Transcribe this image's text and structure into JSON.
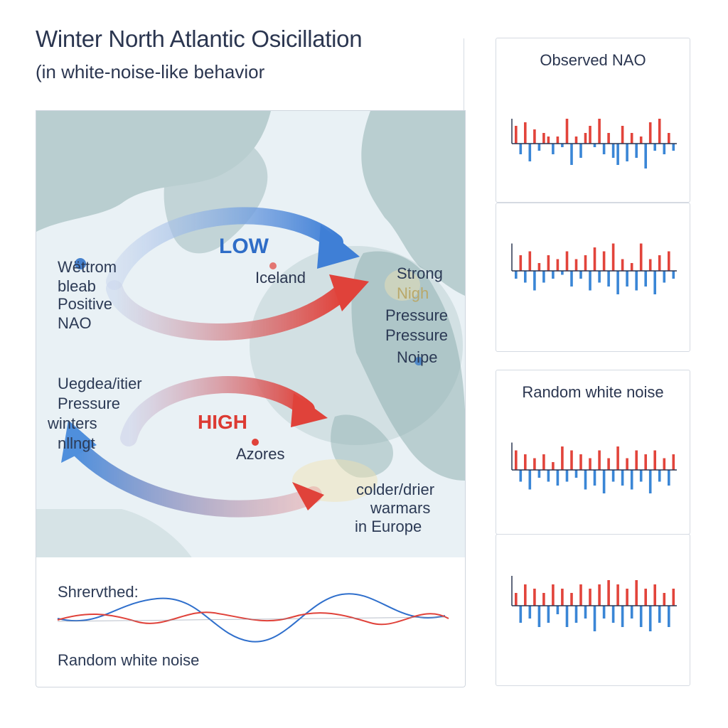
{
  "title": "Winter North Atlantic Osicillation",
  "subtitle": "(in white-noise-like behavior",
  "map": {
    "low_label": "LOW",
    "iceland": "Iceland",
    "high_label": "HIGH",
    "azores": "Azores",
    "left_top": [
      "Wëttrom",
      "bleab",
      "Positive",
      "NAO"
    ],
    "left_bottom": [
      "Uegdea/itier",
      "Pressure",
      "winters",
      "nllngt"
    ],
    "right_top": [
      "Strong",
      "Nigh",
      "Pressure",
      "Pressure",
      "Noipe"
    ],
    "right_bottom": [
      "colder/drier",
      "warmars",
      "in Europe"
    ],
    "colors": {
      "low_arrow": "#3f7fd6",
      "high_arrow": "#e0423a",
      "land": "#9fb9bb",
      "sea": "#e7f0f4"
    }
  },
  "wave_panel": {
    "top_label": "Shrervthed:",
    "bottom_label": "Random white noise"
  },
  "panels": [
    {
      "title": "Observed NAO",
      "values": [
        0.5,
        -0.3,
        0.6,
        -0.5,
        0.4,
        -0.2,
        0.3,
        0.2,
        -0.3,
        0.2,
        -0.1,
        0.7,
        -0.6,
        0.2,
        -0.4,
        0.3,
        0.5,
        -0.1,
        0.7,
        -0.3,
        0.3,
        -0.4,
        -0.6,
        0.5,
        -0.5,
        0.3,
        -0.4,
        0.2,
        -0.7,
        0.6,
        -0.2,
        0.7,
        -0.3,
        0.3,
        -0.2
      ]
    },
    {
      "title": "",
      "values": [
        -0.2,
        0.4,
        -0.3,
        0.5,
        -0.5,
        0.2,
        -0.3,
        0.4,
        -0.2,
        0.3,
        -0.1,
        0.5,
        -0.4,
        0.3,
        -0.2,
        0.4,
        -0.5,
        0.6,
        -0.3,
        0.5,
        -0.4,
        0.7,
        -0.6,
        0.3,
        -0.4,
        0.2,
        -0.5,
        0.7,
        -0.4,
        0.3,
        -0.6,
        0.4,
        -0.3,
        0.5,
        -0.2
      ]
    },
    {
      "title": "Random white noise",
      "values": [
        0.5,
        -0.3,
        0.4,
        -0.5,
        0.3,
        -0.2,
        0.4,
        -0.3,
        0.2,
        -0.4,
        0.6,
        -0.3,
        0.5,
        -0.2,
        0.4,
        -0.5,
        0.3,
        -0.4,
        0.5,
        -0.6,
        0.3,
        -0.3,
        0.6,
        -0.4,
        0.3,
        -0.5,
        0.5,
        -0.3,
        0.4,
        -0.6,
        0.5,
        -0.3,
        0.3,
        -0.4,
        0.4
      ]
    },
    {
      "title": "",
      "values": [
        0.3,
        -0.4,
        0.5,
        -0.3,
        0.4,
        -0.5,
        0.3,
        -0.4,
        0.5,
        -0.2,
        0.4,
        -0.5,
        0.3,
        -0.4,
        0.5,
        -0.3,
        0.4,
        -0.6,
        0.5,
        -0.3,
        0.6,
        -0.4,
        0.5,
        -0.5,
        0.4,
        -0.3,
        0.6,
        -0.5,
        0.4,
        -0.6,
        0.5,
        -0.4,
        0.3,
        -0.5,
        0.4
      ]
    }
  ],
  "colors": {
    "positive": "#e2443b",
    "negative": "#3a86d6",
    "axis": "#2a3550"
  }
}
